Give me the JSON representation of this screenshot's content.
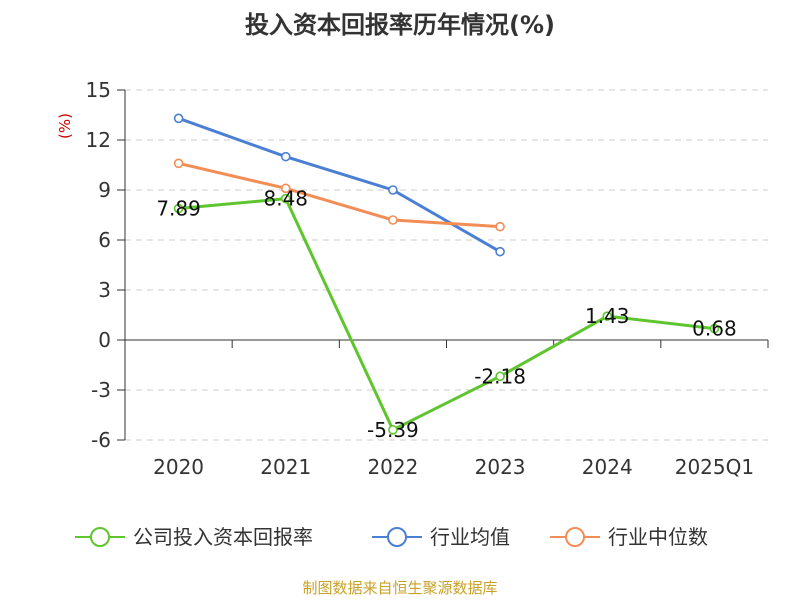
{
  "chart_data": {
    "type": "line",
    "title": "投入资本回报率历年情况(%)",
    "ylabel": "(%)",
    "xlabel": "",
    "categories": [
      "2020",
      "2021",
      "2022",
      "2023",
      "2024",
      "2025Q1"
    ],
    "ylim": [
      -6,
      15
    ],
    "yticks": [
      15,
      12,
      9,
      6,
      3,
      0,
      -3,
      -6
    ],
    "grid": true,
    "legend_position": "bottom",
    "series": [
      {
        "name": "公司投入资本回报率",
        "color": "#5fc52e",
        "values": [
          7.89,
          8.48,
          -5.39,
          -2.18,
          1.43,
          0.68
        ],
        "labels": [
          "7.89",
          "8.48",
          "-5.39",
          "-2.18",
          "1.43",
          "0.68"
        ]
      },
      {
        "name": "行业均值",
        "color": "#4a7fd4",
        "values": [
          13.3,
          11.0,
          9.0,
          5.3,
          null,
          null
        ]
      },
      {
        "name": "行业中位数",
        "color": "#f28e55",
        "values": [
          10.6,
          9.1,
          7.2,
          6.8,
          null,
          null
        ]
      }
    ],
    "source": "制图数据来自恒生聚源数据库"
  }
}
